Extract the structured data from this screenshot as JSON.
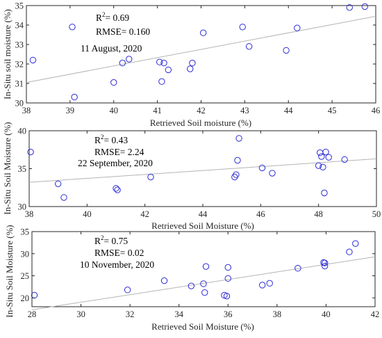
{
  "colors": {
    "marker": "#2b2bd6",
    "fit_line": "#b4b4b4",
    "axes": "#262626"
  },
  "chart_data": [
    {
      "type": "scatter",
      "xlabel": "Retrieved Soil moisture (%)",
      "ylabel": "In-Situ soil moisture (%)",
      "xlim": [
        38,
        46
      ],
      "ylim": [
        30,
        35
      ],
      "xticks": [
        38,
        39,
        40,
        41,
        42,
        43,
        44,
        45,
        46
      ],
      "yticks": [
        30,
        31,
        32,
        33,
        34,
        35
      ],
      "annotations": {
        "r2_prefix": "R",
        "r2_exp": "2",
        "r2_value": "= 0.69",
        "rmse": "RMSE= 0.160",
        "date": "11 August, 2020"
      },
      "grid": false,
      "fit_line": {
        "x": [
          38,
          46
        ],
        "y": [
          31.05,
          34.45
        ]
      },
      "points": [
        [
          38.15,
          32.2
        ],
        [
          39.05,
          33.9
        ],
        [
          39.1,
          30.3
        ],
        [
          40.0,
          31.05
        ],
        [
          40.2,
          32.05
        ],
        [
          40.35,
          32.25
        ],
        [
          41.05,
          32.1
        ],
        [
          41.1,
          31.1
        ],
        [
          41.15,
          32.05
        ],
        [
          41.25,
          31.7
        ],
        [
          41.75,
          31.75
        ],
        [
          41.8,
          32.05
        ],
        [
          42.05,
          33.6
        ],
        [
          42.95,
          33.9
        ],
        [
          43.1,
          32.9
        ],
        [
          43.95,
          32.7
        ],
        [
          44.2,
          33.85
        ],
        [
          45.4,
          34.9
        ],
        [
          45.75,
          34.95
        ]
      ]
    },
    {
      "type": "scatter",
      "xlabel": "Retrieved Soil Moisture (%)",
      "ylabel": "In-Situ Soil Moisture (%)",
      "xlim": [
        38,
        50
      ],
      "ylim": [
        30,
        40
      ],
      "xticks": [
        38,
        40,
        42,
        44,
        46,
        48,
        50
      ],
      "yticks": [
        30,
        35,
        40
      ],
      "annotations": {
        "r2_prefix": "R",
        "r2_exp": "2",
        "r2_value": "= 0.43",
        "rmse": "RMSE= 2.24",
        "date": "22 September, 2020"
      },
      "grid": false,
      "fit_line": {
        "x": [
          38,
          50
        ],
        "y": [
          33.2,
          36.3
        ]
      },
      "points": [
        [
          38.05,
          37.2
        ],
        [
          39.0,
          33.0
        ],
        [
          39.2,
          31.2
        ],
        [
          41.0,
          32.4
        ],
        [
          41.05,
          32.2
        ],
        [
          42.2,
          33.9
        ],
        [
          45.1,
          33.9
        ],
        [
          45.15,
          34.2
        ],
        [
          45.2,
          36.1
        ],
        [
          45.25,
          39.0
        ],
        [
          46.05,
          35.1
        ],
        [
          46.4,
          34.4
        ],
        [
          48.0,
          35.4
        ],
        [
          48.05,
          37.1
        ],
        [
          48.1,
          36.6
        ],
        [
          48.15,
          35.2
        ],
        [
          48.2,
          31.8
        ],
        [
          48.25,
          37.2
        ],
        [
          48.35,
          36.5
        ],
        [
          48.9,
          36.2
        ]
      ]
    },
    {
      "type": "scatter",
      "xlabel": "Retrieved Soil Moisture (%)",
      "ylabel": "In-Situ Soil Moisture (%)",
      "xlim": [
        28,
        42
      ],
      "ylim": [
        18,
        35
      ],
      "xticks": [
        28,
        30,
        32,
        34,
        36,
        38,
        40,
        42
      ],
      "yticks": [
        20,
        25,
        30,
        35
      ],
      "annotations": {
        "r2_prefix": "R",
        "r2_exp": "2",
        "r2_value": "= 0.75",
        "rmse": "RMSE= 0.02",
        "date": "10 November, 2020"
      },
      "grid": false,
      "fit_line": {
        "x": [
          28,
          42
        ],
        "y": [
          17.3,
          29.3
        ]
      },
      "points": [
        [
          28.1,
          20.6
        ],
        [
          31.9,
          21.8
        ],
        [
          33.4,
          23.9
        ],
        [
          34.5,
          22.7
        ],
        [
          35.0,
          23.2
        ],
        [
          35.05,
          21.2
        ],
        [
          35.1,
          27.1
        ],
        [
          35.85,
          20.6
        ],
        [
          35.95,
          20.4
        ],
        [
          36.0,
          24.4
        ],
        [
          36.0,
          26.9
        ],
        [
          37.4,
          22.9
        ],
        [
          37.7,
          23.3
        ],
        [
          38.85,
          26.7
        ],
        [
          39.9,
          28.0
        ],
        [
          39.95,
          27.2
        ],
        [
          39.95,
          27.9
        ],
        [
          40.95,
          30.4
        ],
        [
          41.2,
          32.3
        ]
      ]
    }
  ]
}
